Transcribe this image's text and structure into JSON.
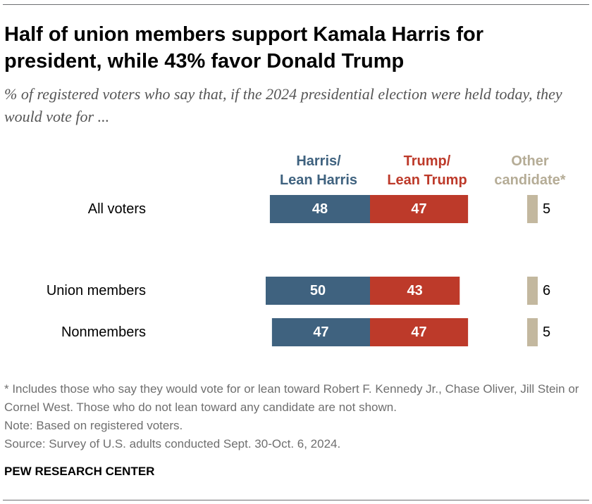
{
  "header": {
    "title": "Half of union members support Kamala Harris for president, while 43% favor Donald Trump",
    "subtitle": "% of registered voters who say that, if the 2024 presidential election were held today, they would vote for ..."
  },
  "chart_data": {
    "type": "bar",
    "orientation": "horizontal",
    "stacked": "diverging",
    "categories": [
      "All voters",
      "Union members",
      "Nonmembers"
    ],
    "series": [
      {
        "name": "Harris/ Lean Harris",
        "name_lines": [
          "Harris/",
          "Lean Harris"
        ],
        "values": [
          48,
          50,
          47
        ],
        "color": "#3f627f"
      },
      {
        "name": "Trump/ Lean Trump",
        "name_lines": [
          "Trump/",
          "Lean Trump"
        ],
        "values": [
          47,
          43,
          47
        ],
        "color": "#bd3a2a"
      },
      {
        "name": "Other candidate*",
        "name_lines": [
          "Other",
          "candidate*"
        ],
        "values": [
          5,
          6,
          5
        ],
        "color": "#c3b89f"
      }
    ],
    "label_colors": {
      "harris": "#3f627f",
      "trump": "#bd3a2a",
      "other": "#b5ac96"
    }
  },
  "footer": {
    "note1": "* Includes those who say they would vote for or lean toward Robert F. Kennedy Jr., Chase Oliver, Jill Stein or Cornel West. Those who do not lean toward any candidate are not shown.",
    "note2": "Note: Based on registered voters.",
    "source": "Source: Survey of U.S. adults conducted Sept. 30-Oct. 6, 2024.",
    "brand": "PEW RESEARCH CENTER"
  }
}
